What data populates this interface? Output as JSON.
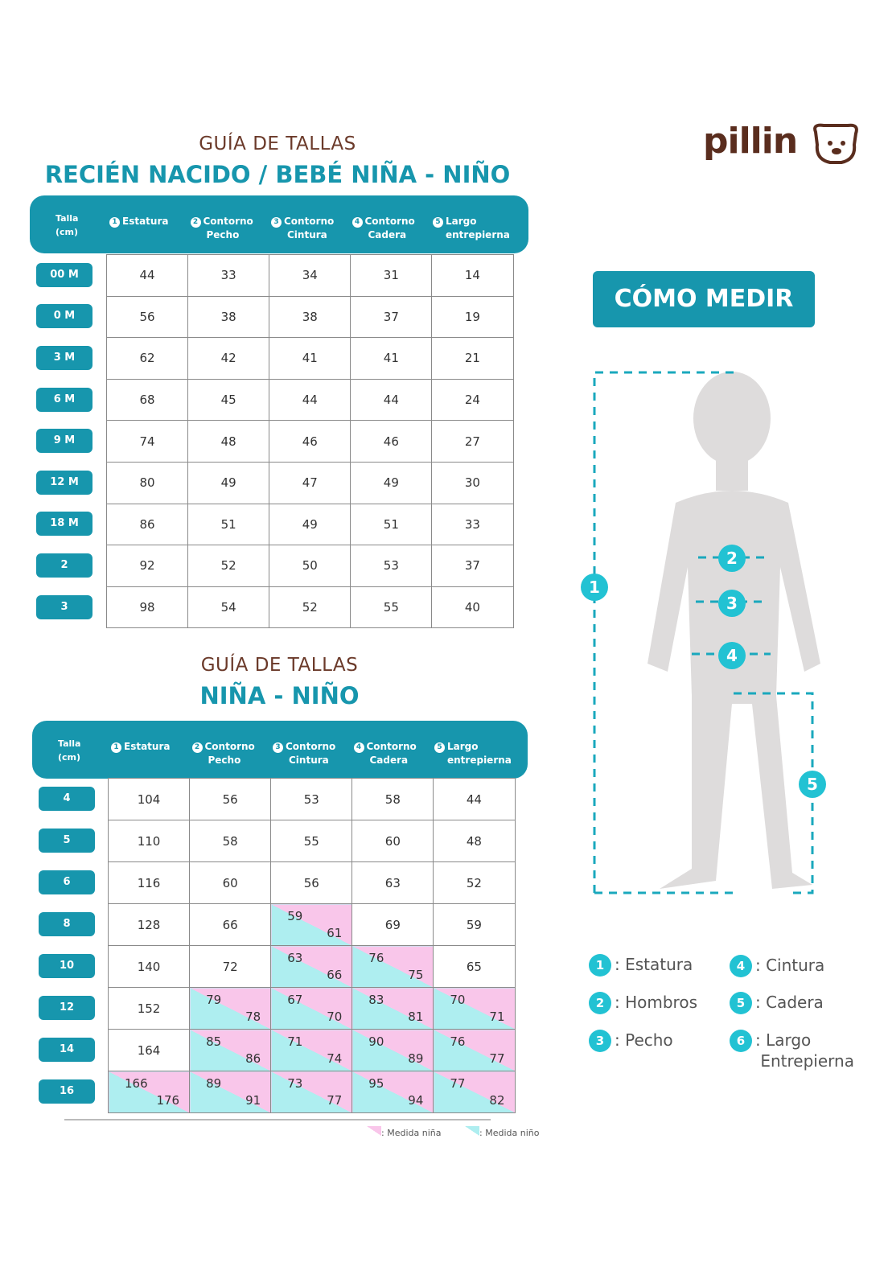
{
  "logo": {
    "text": "pillin",
    "icon": "dog-face-icon",
    "brand_color": "#5a2d1e"
  },
  "colors": {
    "teal": "#1796ad",
    "circle": "#22c2d3",
    "girl_pink": "#f9c6ea",
    "boy_cyan": "#aeeef0"
  },
  "headers": [
    "Talla\n(cm)",
    "Estatura",
    "Contorno\nPecho",
    "Contorno\nCintura",
    "Contorno\nCadera",
    "Largo\nentrepierna"
  ],
  "table1": {
    "subtitle": "GUÍA DE TALLAS",
    "title": "RECIÉN NACIDO / BEBÉ NIÑA - NIÑO",
    "rows": [
      [
        "00 M",
        44,
        33,
        34,
        31,
        14
      ],
      [
        "0 M",
        56,
        38,
        38,
        37,
        19
      ],
      [
        "3 M",
        62,
        42,
        41,
        41,
        21
      ],
      [
        "6 M",
        68,
        45,
        44,
        44,
        24
      ],
      [
        "9 M",
        74,
        48,
        46,
        46,
        27
      ],
      [
        "12 M",
        80,
        49,
        47,
        49,
        30
      ],
      [
        "18 M",
        86,
        51,
        49,
        51,
        33
      ],
      [
        "2",
        92,
        52,
        50,
        53,
        37
      ],
      [
        "3",
        98,
        54,
        52,
        55,
        40
      ]
    ]
  },
  "table2": {
    "subtitle": "GUÍA DE TALLAS",
    "title": "NIÑA - NIÑO",
    "rows": [
      [
        "4",
        104,
        56,
        53,
        58,
        44
      ],
      [
        "5",
        110,
        58,
        55,
        60,
        48
      ],
      [
        "6",
        116,
        60,
        56,
        63,
        52
      ],
      [
        "8",
        128,
        66,
        [
          59,
          61
        ],
        69,
        59
      ],
      [
        "10",
        140,
        72,
        [
          63,
          66
        ],
        [
          76,
          75
        ],
        65
      ],
      [
        "12",
        152,
        [
          79,
          78
        ],
        [
          67,
          70
        ],
        [
          83,
          81
        ],
        [
          70,
          71
        ]
      ],
      [
        "14",
        164,
        [
          85,
          86
        ],
        [
          71,
          74
        ],
        [
          90,
          89
        ],
        [
          76,
          77
        ]
      ],
      [
        "16",
        [
          166,
          176
        ],
        [
          89,
          91
        ],
        [
          73,
          77
        ],
        [
          95,
          94
        ],
        [
          77,
          82
        ]
      ]
    ]
  },
  "table_legend": {
    "girl": ": Medida niña",
    "boy": ": Medida niño"
  },
  "how_to": {
    "button": "CÓMO MEDIR"
  },
  "figure_markers": [
    "1",
    "2",
    "3",
    "4",
    "5"
  ],
  "measures": [
    {
      "n": "1",
      "label": ": Estatura"
    },
    {
      "n": "2",
      "label": ": Hombros"
    },
    {
      "n": "3",
      "label": ": Pecho"
    },
    {
      "n": "4",
      "label": ": Cintura"
    },
    {
      "n": "5",
      "label": ": Cadera"
    },
    {
      "n": "6",
      "label": ": Largo\nEntrepierna"
    }
  ]
}
